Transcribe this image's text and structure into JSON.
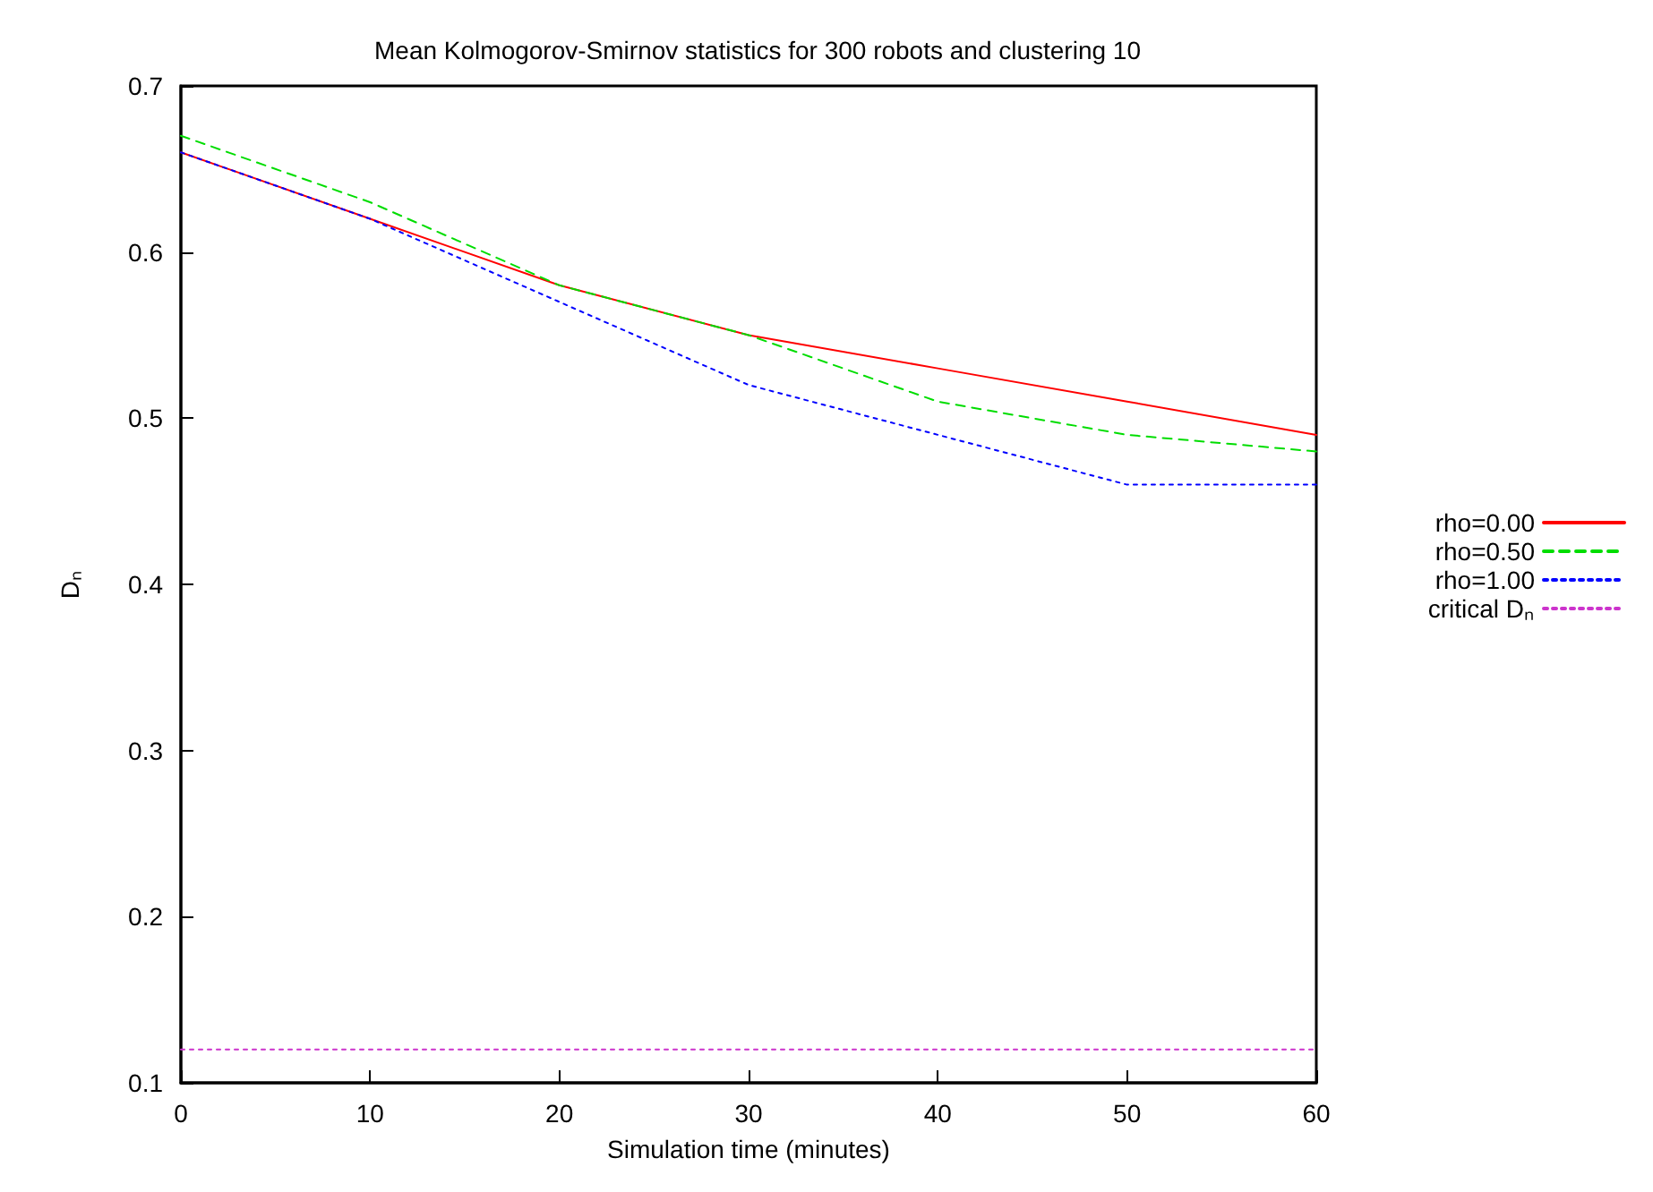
{
  "chart_data": {
    "type": "line",
    "title": "Mean Kolmogorov-Smirnov statistics for 300 robots and clustering 10",
    "xlabel": "Simulation time (minutes)",
    "ylabel": "Dₙ",
    "x": [
      0,
      10,
      20,
      30,
      40,
      50,
      60
    ],
    "series": [
      {
        "name": "rho=0.00",
        "color": "#ff0000",
        "line_style": "solid",
        "values": [
          0.66,
          0.62,
          0.58,
          0.55,
          0.53,
          0.51,
          0.49
        ]
      },
      {
        "name": "rho=0.50",
        "color": "#00dd00",
        "line_style": "dashed",
        "values": [
          0.67,
          0.63,
          0.58,
          0.55,
          0.51,
          0.49,
          0.48
        ]
      },
      {
        "name": "rho=1.00",
        "color": "#0000ff",
        "line_style": "dotted",
        "values": [
          0.66,
          0.62,
          0.57,
          0.52,
          0.49,
          0.46,
          0.46
        ]
      },
      {
        "name": "critical Dₙ",
        "color": "#cc33cc",
        "line_style": "dotted",
        "values": [
          0.12,
          0.12,
          0.12,
          0.12,
          0.12,
          0.12,
          0.12
        ]
      }
    ],
    "xlim": [
      0,
      60
    ],
    "xticks": [
      0,
      10,
      20,
      30,
      40,
      50,
      60
    ],
    "ylim": [
      0.1,
      0.7
    ],
    "yticks": [
      0.1,
      0.2,
      0.3,
      0.4,
      0.5,
      0.6,
      0.7
    ],
    "grid": false,
    "legend": "right",
    "marker": "none"
  }
}
